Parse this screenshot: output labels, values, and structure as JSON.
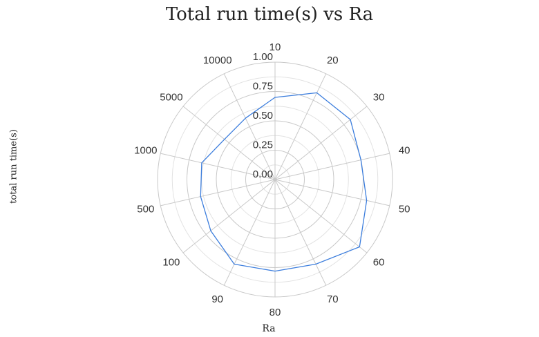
{
  "chart_data": {
    "type": "radar",
    "title": "Total run time(s) vs Ra",
    "xlabel": "Ra",
    "ylabel": "total run time(s)",
    "categories": [
      "10",
      "20",
      "30",
      "40",
      "50",
      "60",
      "70",
      "80",
      "90",
      "100",
      "500",
      "1000",
      "5000",
      "10000"
    ],
    "radial_ticks": [
      "0.00",
      "0.25",
      "0.50",
      "0.75",
      "1.00"
    ],
    "rlim": [
      0,
      1
    ],
    "grid": true,
    "series": [
      {
        "color": "#3b7ddd",
        "values": [
          0.7,
          0.82,
          0.82,
          0.75,
          0.8,
          0.92,
          0.8,
          0.78,
          0.8,
          0.7,
          0.65,
          0.64,
          0.55,
          0.58
        ]
      }
    ]
  }
}
